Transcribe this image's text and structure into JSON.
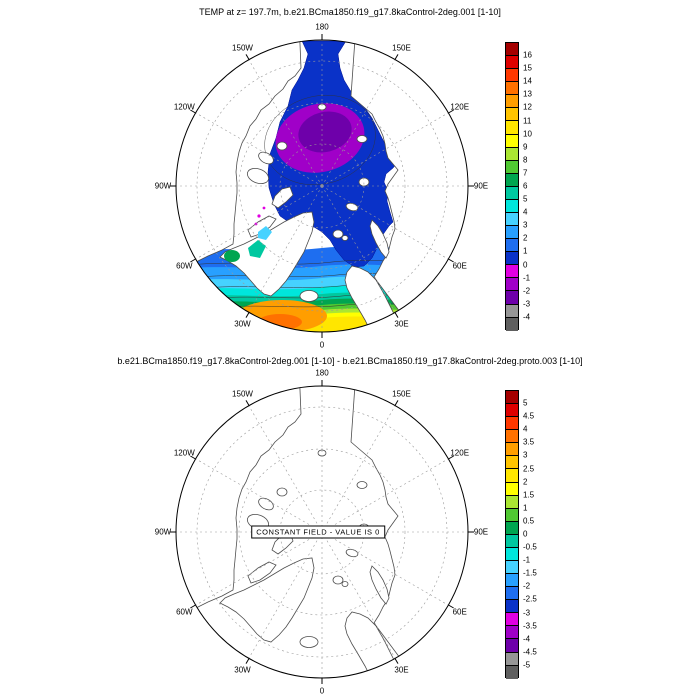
{
  "top_panel": {
    "title": "TEMP at z= 197.7m, b.e21.BCma1850.f19_g17.8kaControl-2deg.001 [1-10]",
    "colorbar": {
      "labels": [
        "16",
        "15",
        "14",
        "13",
        "12",
        "11",
        "10",
        "9",
        "8",
        "7",
        "6",
        "5",
        "4",
        "3",
        "2",
        "1",
        "0",
        "-1",
        "-2",
        "-3",
        "-4"
      ],
      "colors": [
        "#A50000",
        "#DE0000",
        "#FF3800",
        "#FF7100",
        "#FF9E00",
        "#FFC400",
        "#FFE600",
        "#FFFF00",
        "#AAE632",
        "#50C832",
        "#00A550",
        "#00C8A0",
        "#00E6DC",
        "#46D2FF",
        "#28A0FF",
        "#1E6EF0",
        "#0A32C8",
        "#E100E1",
        "#A000C8",
        "#6E00AA",
        "#969696",
        "#5F5F5F"
      ]
    }
  },
  "bottom_panel": {
    "title": "b.e21.BCma1850.f19_g17.8kaControl-2deg.001 [1-10] - b.e21.BCma1850.f19_g17.8kaControl-2deg.proto.003 [1-10]",
    "note": "CONSTANT FIELD - VALUE IS 0",
    "colorbar": {
      "labels": [
        "5",
        "4.5",
        "4",
        "3.5",
        "3",
        "2.5",
        "2",
        "1.5",
        "1",
        "0.5",
        "0",
        "-0.5",
        "-1",
        "-1.5",
        "-2",
        "-2.5",
        "-3",
        "-3.5",
        "-4",
        "-4.5",
        "-5"
      ],
      "colors": [
        "#A50000",
        "#DE0000",
        "#FF3800",
        "#FF7100",
        "#FF9E00",
        "#FFC400",
        "#FFE600",
        "#FFFF00",
        "#AAE632",
        "#50C832",
        "#00A550",
        "#00C8A0",
        "#00E6DC",
        "#46D2FF",
        "#28A0FF",
        "#1E6EF0",
        "#0A32C8",
        "#E100E1",
        "#A000C8",
        "#6E00AA",
        "#969696",
        "#5F5F5F"
      ]
    }
  },
  "map": {
    "lon_labels": [
      {
        "text": "180",
        "angle": 0
      },
      {
        "text": "150E",
        "angle": 30
      },
      {
        "text": "120E",
        "angle": 60
      },
      {
        "text": "90E",
        "angle": 90
      },
      {
        "text": "60E",
        "angle": 120
      },
      {
        "text": "30E",
        "angle": 150
      },
      {
        "text": "0",
        "angle": 180
      },
      {
        "text": "30W",
        "angle": 210
      },
      {
        "text": "60W",
        "angle": 240
      },
      {
        "text": "90W",
        "angle": 270
      },
      {
        "text": "120W",
        "angle": 300
      },
      {
        "text": "150W",
        "angle": 330
      }
    ]
  },
  "chart_data": [
    {
      "type": "heatmap",
      "title": "TEMP at z= 197.7m, b.e21.BCma1850.f19_g17.8kaControl-2deg.001 [1-10]",
      "projection": "north polar stereographic, 180 at top, 0 at bottom, meridian labels every 30 degrees",
      "variable": "TEMP at z= 197.7m (degC)",
      "contour_levels": [
        -4,
        -3,
        -2,
        -1,
        0,
        1,
        2,
        3,
        4,
        5,
        6,
        7,
        8,
        9,
        10,
        11,
        12,
        13,
        14,
        15,
        16
      ],
      "legend_position": "right",
      "description": "Filled contours of ocean temperature at 197.7 m depth. Central Arctic basin coldest: -3 to -1 (purple/violet core near pole), surrounded by broad 0-1 dark blue; values warm southward toward the North Atlantic through 1-5 (blue/cyan bands), 5-8 (green), 8-10 (yellow) and 10-12 (orange) at the southern map edge near 30W; land areas blank white"
    },
    {
      "type": "heatmap",
      "title": "b.e21.BCma1850.f19_g17.8kaControl-2deg.001 [1-10] - b.e21.BCma1850.f19_g17.8kaControl-2deg.proto.003 [1-10]",
      "projection": "north polar stereographic, 180 at top, 0 at bottom, meridian labels every 30 degrees",
      "contour_levels": [
        -5,
        -4.5,
        -4,
        -3.5,
        -3,
        -2.5,
        -2,
        -1.5,
        -1,
        -0.5,
        0,
        0.5,
        1,
        1.5,
        2,
        2.5,
        3,
        3.5,
        4,
        4.5,
        5
      ],
      "legend_position": "right",
      "annotation": "CONSTANT FIELD - VALUE IS 0",
      "values": "difference field is constant zero everywhere (no shading drawn)"
    }
  ]
}
